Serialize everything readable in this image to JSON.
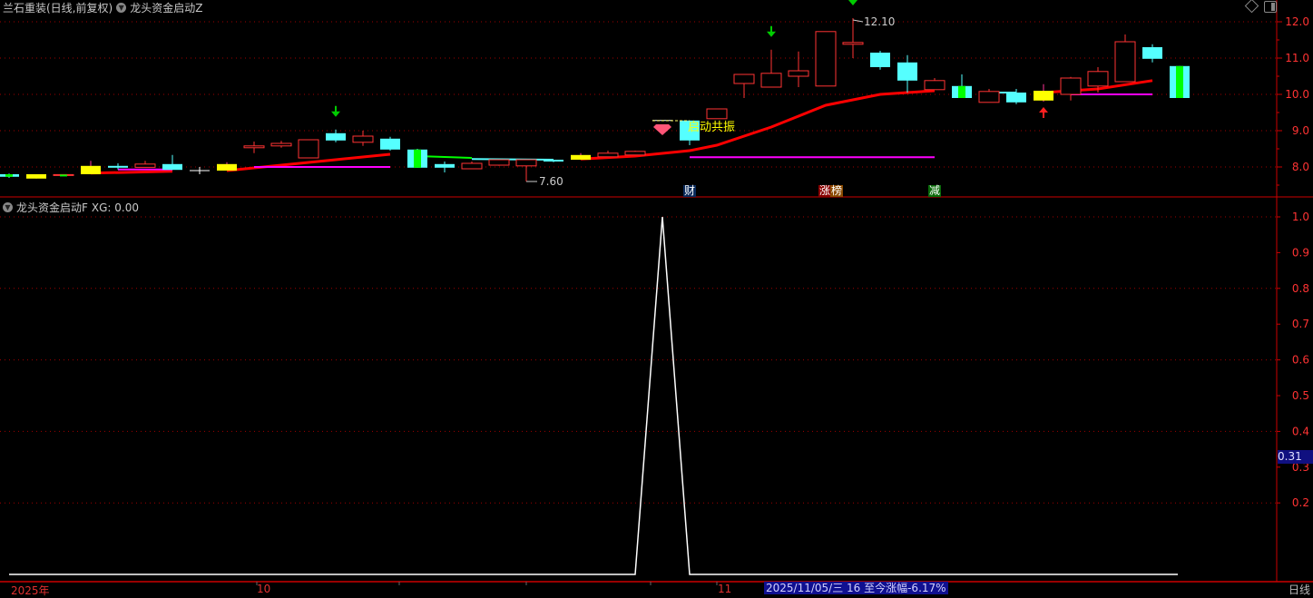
{
  "header": {
    "stock_title": "兰石重装(日线,前复权)",
    "indicator_main": "龙头资金启动Z",
    "indicator_sub": "龙头资金启动F",
    "indicator_sub_value": "XG: 0.00",
    "toggle_icon": "chevron-circle-down-icon",
    "top_right_icons": [
      "diamond-icon",
      "panel-toggle-icon"
    ]
  },
  "x_axis": {
    "labels": [
      "2025年",
      "10",
      "11"
    ],
    "highlight": "2025/11/05/三 16 至今涨幅-6.17%",
    "period": "日线"
  },
  "sub_badge": "0.31",
  "markers": {
    "cai": "财",
    "zhang": "涨",
    "bang": "榜",
    "jian": "减",
    "signal_text": "启动共振",
    "high_label": "12.10",
    "low_label": "7.60"
  },
  "colors": {
    "up": "#ff3333",
    "down": "#55ffff",
    "special": "#ffff00",
    "inner": "#00ff00",
    "ma": "#ff0000",
    "level": "#ff00ff",
    "grid": "#a00000",
    "axis": "#cc0000",
    "sub_line": "#ffffff"
  },
  "chart_data": [
    {
      "type": "candlestick",
      "title": "兰石重装(日线,前复权)",
      "y_ticks": [
        "12.0",
        "11.0",
        "10.0",
        "9.0",
        "8.0"
      ],
      "ylim": [
        7.3,
        12.5
      ],
      "grid": true,
      "candles": [
        {
          "o": 7.8,
          "h": 7.82,
          "l": 7.7,
          "c": 7.73,
          "k": "down",
          "inner": true
        },
        {
          "o": 7.68,
          "h": 7.8,
          "l": 7.68,
          "c": 7.8,
          "k": "special"
        },
        {
          "o": 7.77,
          "h": 7.8,
          "l": 7.76,
          "c": 7.79,
          "k": "up",
          "inner": true
        },
        {
          "o": 7.8,
          "h": 8.17,
          "l": 7.8,
          "c": 8.03,
          "k": "special"
        },
        {
          "o": 8.03,
          "h": 8.1,
          "l": 7.93,
          "c": 7.98,
          "k": "down"
        },
        {
          "o": 7.99,
          "h": 8.17,
          "l": 7.99,
          "c": 8.08,
          "k": "up"
        },
        {
          "o": 8.08,
          "h": 8.33,
          "l": 7.92,
          "c": 7.92,
          "k": "down"
        },
        {
          "o": 7.9,
          "h": 8.0,
          "l": 7.8,
          "c": 7.9,
          "k": "doji"
        },
        {
          "o": 7.9,
          "h": 8.13,
          "l": 7.9,
          "c": 8.08,
          "k": "special"
        },
        {
          "o": 8.53,
          "h": 8.7,
          "l": 8.38,
          "c": 8.58,
          "k": "up"
        },
        {
          "o": 8.58,
          "h": 8.72,
          "l": 8.53,
          "c": 8.65,
          "k": "up"
        },
        {
          "o": 8.25,
          "h": 8.75,
          "l": 8.25,
          "c": 8.75,
          "k": "up"
        },
        {
          "o": 8.93,
          "h": 9.03,
          "l": 8.68,
          "c": 8.73,
          "k": "down"
        },
        {
          "o": 8.68,
          "h": 9.0,
          "l": 8.58,
          "c": 8.85,
          "k": "up"
        },
        {
          "o": 8.78,
          "h": 8.83,
          "l": 8.45,
          "c": 8.48,
          "k": "down"
        },
        {
          "o": 8.48,
          "h": 8.5,
          "l": 7.98,
          "c": 7.98,
          "k": "down",
          "inner": true
        },
        {
          "o": 8.08,
          "h": 8.15,
          "l": 7.85,
          "c": 7.98,
          "k": "down"
        },
        {
          "o": 7.95,
          "h": 8.15,
          "l": 7.95,
          "c": 8.1,
          "k": "up"
        },
        {
          "o": 8.05,
          "h": 8.2,
          "l": 8.03,
          "c": 8.2,
          "k": "up"
        },
        {
          "o": 8.03,
          "h": 8.2,
          "l": 7.6,
          "c": 8.2,
          "k": "up"
        },
        {
          "o": 8.2,
          "h": 8.2,
          "l": 8.13,
          "c": 8.18,
          "k": "down"
        },
        {
          "o": 8.2,
          "h": 8.38,
          "l": 8.2,
          "c": 8.33,
          "k": "special"
        },
        {
          "o": 8.28,
          "h": 8.45,
          "l": 8.28,
          "c": 8.38,
          "k": "up"
        },
        {
          "o": 8.33,
          "h": 8.45,
          "l": 8.33,
          "c": 8.43,
          "k": "up"
        },
        {
          "o": 9.28,
          "h": 9.28,
          "l": 9.28,
          "c": 9.28,
          "k": "doji"
        },
        {
          "o": 9.28,
          "h": 9.28,
          "l": 8.6,
          "c": 8.73,
          "k": "down"
        },
        {
          "o": 9.33,
          "h": 9.6,
          "l": 9.33,
          "c": 9.6,
          "k": "up"
        },
        {
          "o": 10.3,
          "h": 10.55,
          "l": 9.9,
          "c": 10.55,
          "k": "up"
        },
        {
          "o": 10.2,
          "h": 11.23,
          "l": 10.2,
          "c": 10.58,
          "k": "up"
        },
        {
          "o": 10.5,
          "h": 11.18,
          "l": 10.2,
          "c": 10.65,
          "k": "up"
        },
        {
          "o": 10.23,
          "h": 11.73,
          "l": 10.23,
          "c": 11.73,
          "k": "up"
        },
        {
          "o": 11.38,
          "h": 12.1,
          "l": 11.0,
          "c": 11.43,
          "k": "up"
        },
        {
          "o": 11.15,
          "h": 11.2,
          "l": 10.68,
          "c": 10.75,
          "k": "down"
        },
        {
          "o": 10.88,
          "h": 11.08,
          "l": 10.05,
          "c": 10.38,
          "k": "down"
        },
        {
          "o": 10.13,
          "h": 10.45,
          "l": 10.13,
          "c": 10.38,
          "k": "up"
        },
        {
          "o": 10.23,
          "h": 10.55,
          "l": 9.9,
          "c": 9.9,
          "k": "down",
          "inner": true
        },
        {
          "o": 9.78,
          "h": 10.15,
          "l": 9.78,
          "c": 10.08,
          "k": "up"
        },
        {
          "o": 10.05,
          "h": 10.15,
          "l": 9.73,
          "c": 9.78,
          "k": "down"
        },
        {
          "o": 9.83,
          "h": 10.28,
          "l": 9.8,
          "c": 10.1,
          "k": "special"
        },
        {
          "o": 10.0,
          "h": 10.48,
          "l": 9.83,
          "c": 10.45,
          "k": "up"
        },
        {
          "o": 10.23,
          "h": 10.75,
          "l": 10.05,
          "c": 10.63,
          "k": "up"
        },
        {
          "o": 10.35,
          "h": 11.65,
          "l": 10.35,
          "c": 11.45,
          "k": "up"
        },
        {
          "o": 11.3,
          "h": 11.38,
          "l": 10.88,
          "c": 10.98,
          "k": "down"
        },
        {
          "o": 10.78,
          "h": 10.78,
          "l": 9.9,
          "c": 9.9,
          "k": "down",
          "inner": true
        }
      ],
      "lines": [
        {
          "color": "ma",
          "pts": [
            [
              3,
              7.83
            ],
            [
              6,
              7.88
            ]
          ]
        },
        {
          "color": "ma",
          "pts": [
            [
              8,
              7.9
            ],
            [
              10,
              8.05
            ],
            [
              12,
              8.2
            ],
            [
              14,
              8.35
            ]
          ]
        },
        {
          "color": "inner",
          "pts": [
            [
              15,
              8.3
            ],
            [
              17,
              8.25
            ]
          ]
        },
        {
          "color": "down",
          "pts": [
            [
              17,
              8.22
            ],
            [
              20,
              8.2
            ]
          ]
        },
        {
          "color": "ma",
          "pts": [
            [
              21,
              8.22
            ],
            [
              23,
              8.3
            ],
            [
              25,
              8.45
            ],
            [
              26,
              8.6
            ],
            [
              28,
              9.1
            ],
            [
              30,
              9.7
            ],
            [
              32,
              10.0
            ],
            [
              34,
              10.1
            ]
          ]
        },
        {
          "color": "down",
          "pts": [
            [
              36,
              10.05
            ],
            [
              37,
              10.05
            ]
          ]
        },
        {
          "color": "ma",
          "pts": [
            [
              38,
              10.05
            ],
            [
              40,
              10.15
            ],
            [
              42,
              10.38
            ]
          ]
        },
        {
          "color": "level",
          "pts": [
            [
              4,
              7.93
            ],
            [
              6,
              7.93
            ]
          ]
        },
        {
          "color": "level",
          "pts": [
            [
              9,
              8.0
            ],
            [
              14,
              8.0
            ]
          ]
        },
        {
          "color": "level",
          "pts": [
            [
              25,
              8.27
            ],
            [
              34,
              8.27
            ]
          ]
        },
        {
          "color": "level",
          "pts": [
            [
              39,
              10.0
            ],
            [
              42,
              10.0
            ]
          ]
        }
      ],
      "arrows_down": [
        12,
        28,
        31
      ],
      "arrows_up": [
        38
      ],
      "signal_index": 24
    },
    {
      "type": "line",
      "title": "龙头资金启动F",
      "y_ticks": [
        "1.0",
        "0.9",
        "0.8",
        "0.7",
        "0.6",
        "0.5",
        "0.4",
        "0.3",
        "0.2"
      ],
      "ylim": [
        0,
        1.0
      ],
      "grid": true,
      "values": [
        0,
        0,
        0,
        0,
        0,
        0,
        0,
        0,
        0,
        0,
        0,
        0,
        0,
        0,
        0,
        0,
        0,
        0,
        0,
        0,
        0,
        0,
        0,
        0,
        1,
        0,
        0,
        0,
        0,
        0,
        0,
        0,
        0,
        0,
        0,
        0,
        0,
        0,
        0,
        0,
        0,
        0,
        0,
        0
      ]
    }
  ]
}
